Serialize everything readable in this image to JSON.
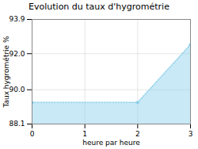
{
  "chart_data": {
    "type": "area",
    "title": "Evolution du taux d'hygrométrie",
    "xlabel": "heure par heure",
    "ylabel": "Taux hygrométrie %",
    "x": [
      0,
      2,
      3
    ],
    "values": [
      89.3,
      89.3,
      92.5
    ],
    "color": "#87CEEB",
    "marker": "point",
    "line_style": "dotted",
    "xlim": [
      0,
      3
    ],
    "xticks": [
      0,
      1,
      2,
      3
    ],
    "ylim": [
      88.1,
      93.9
    ],
    "yticks": [
      88.1,
      {
        "value": 90,
        "label": "90.0"
      },
      {
        "value": 92,
        "label": "92.0"
      },
      93.9
    ],
    "grid": true
  }
}
